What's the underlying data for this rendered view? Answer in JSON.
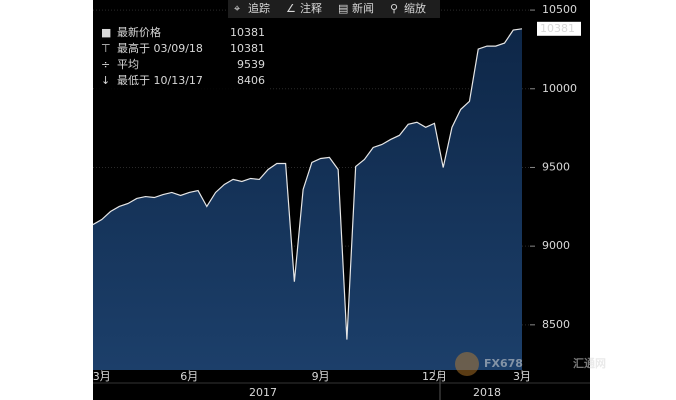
{
  "chart_data": {
    "type": "area",
    "toolbar": [
      "追踪",
      "注释",
      "新闻",
      "缩放"
    ],
    "stats": [
      {
        "label": "最新价格",
        "value": 10381
      },
      {
        "label": "最高于 03/09/18",
        "value": 10381
      },
      {
        "label": "平均",
        "value": 9539
      },
      {
        "label": "最低于 10/13/17",
        "value": 8406
      }
    ],
    "categories": [
      null,
      "3月",
      null,
      null,
      null,
      null,
      null,
      null,
      null,
      null,
      null,
      "6月",
      null,
      null,
      null,
      null,
      null,
      null,
      null,
      null,
      null,
      null,
      null,
      null,
      null,
      null,
      "9月",
      null,
      null,
      null,
      null,
      null,
      null,
      null,
      null,
      null,
      null,
      null,
      null,
      "12月",
      null,
      null,
      null,
      null,
      null,
      null,
      null,
      null,
      null,
      "3月"
    ],
    "values": [
      9137,
      9169,
      9220,
      9252,
      9271,
      9303,
      9315,
      9309,
      9328,
      9341,
      9322,
      9341,
      9353,
      9252,
      9341,
      9392,
      9424,
      9411,
      9430,
      9424,
      9487,
      9525,
      9525,
      8774,
      9360,
      9532,
      9557,
      9564,
      9487,
      8406,
      9506,
      9551,
      9627,
      9646,
      9678,
      9704,
      9774,
      9787,
      9755,
      9780,
      9500,
      9755,
      9869,
      9920,
      10252,
      10271,
      10271,
      10290,
      10373,
      10381
    ],
    "x_groups": [
      "2017",
      "2018"
    ],
    "line_color": "#e6e6e6",
    "fill_color": "#16335a",
    "ylim": [
      8213,
      10564
    ],
    "yticks": [
      8500,
      9000,
      9500,
      10000,
      10500
    ],
    "grid": true,
    "watermark": [
      "FX678",
      "汇通网"
    ]
  }
}
